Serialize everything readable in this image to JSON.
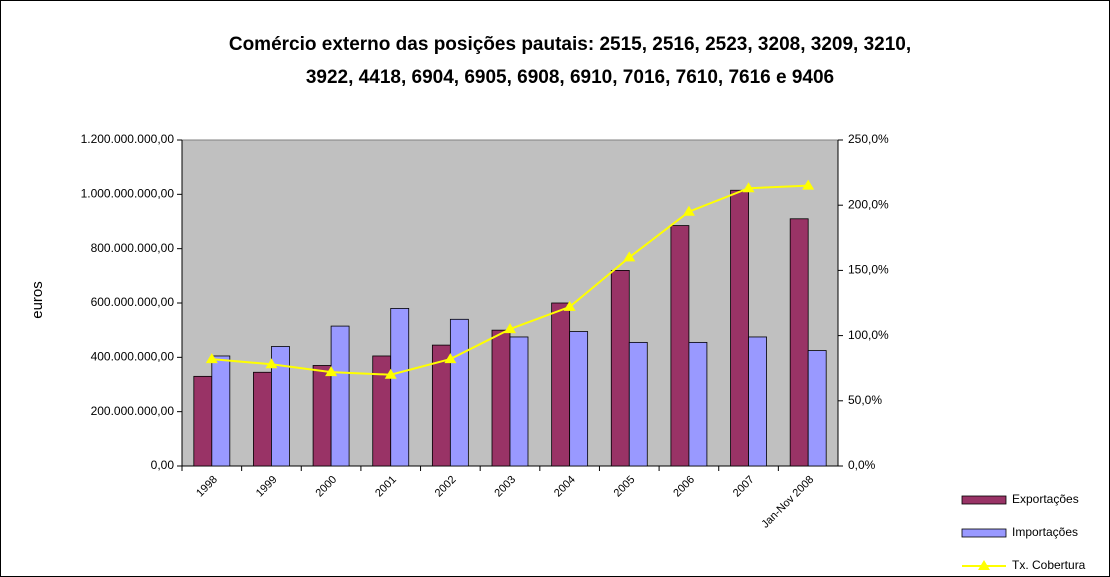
{
  "chart_data": {
    "type": "bar_line",
    "title": [
      "Comércio externo das posições pautais: 2515, 2516, 2523, 3208, 3209, 3210,",
      "3922, 4418, 6904, 6905, 6908, 6910, 7016, 7610, 7616 e 9406"
    ],
    "y_label": "euros",
    "categories": [
      "1998",
      "1999",
      "2000",
      "2001",
      "2002",
      "2003",
      "2004",
      "2005",
      "2006",
      "2007",
      "Jan-Nov 2008"
    ],
    "series": [
      {
        "name": "Exportações",
        "color": "#993366",
        "kind": "bar",
        "values": [
          330000000,
          345000000,
          370000000,
          405000000,
          445000000,
          500000000,
          600000000,
          720000000,
          885000000,
          1015000000,
          910000000
        ]
      },
      {
        "name": "Importações",
        "color": "#9999ff",
        "kind": "bar",
        "values": [
          405000000,
          440000000,
          515000000,
          580000000,
          540000000,
          475000000,
          495000000,
          455000000,
          455000000,
          475000000,
          425000000
        ]
      },
      {
        "name": "Tx. Cobertura",
        "color": "#ffff00",
        "kind": "line",
        "axis": "y2",
        "values": [
          82,
          78,
          72,
          70,
          82,
          105,
          122,
          160,
          195,
          213,
          215
        ]
      }
    ],
    "ylim": [
      0,
      1200000000
    ],
    "yticks": [
      {
        "value": 0,
        "label": "0,00"
      },
      {
        "value": 200000000,
        "label": "200.000.000,00"
      },
      {
        "value": 400000000,
        "label": "400.000.000,00"
      },
      {
        "value": 600000000,
        "label": "600.000.000,00"
      },
      {
        "value": 800000000,
        "label": "800.000.000,00"
      },
      {
        "value": 1000000000,
        "label": "1.000.000.000,00"
      },
      {
        "value": 1200000000,
        "label": "1.200.000.000,00"
      }
    ],
    "y2lim": [
      0,
      250
    ],
    "y2ticks": [
      {
        "value": 0,
        "label": "0,0%"
      },
      {
        "value": 50,
        "label": "50,0%"
      },
      {
        "value": 100,
        "label": "100,0%"
      },
      {
        "value": 150,
        "label": "150,0%"
      },
      {
        "value": 200,
        "label": "200,0%"
      },
      {
        "value": 250,
        "label": "250,0%"
      }
    ],
    "plot_background": "#c0c0c0",
    "legend": "bottom-right"
  }
}
